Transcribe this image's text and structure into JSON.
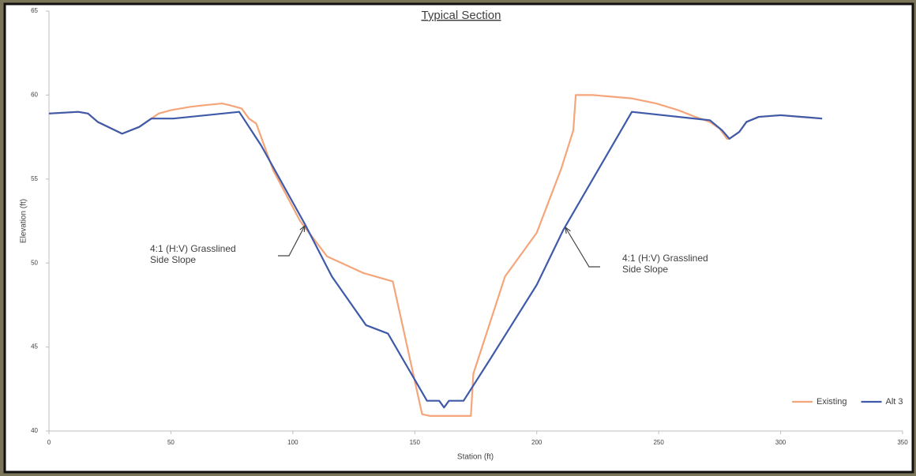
{
  "chart_data": {
    "type": "line",
    "title": "Typical Section",
    "x_label": "Station (ft)",
    "y_label": "Elevation (ft)",
    "xlim": [
      0,
      350
    ],
    "xticks": [
      0,
      50,
      100,
      150,
      200,
      250,
      300,
      350
    ],
    "ylim": [
      40,
      65
    ],
    "yticks": [
      40,
      45,
      50,
      55,
      60,
      65
    ],
    "grid": false,
    "legend": "bottom-right",
    "series": [
      {
        "name": "Existing",
        "color": "#f4a57a",
        "x": [
          0,
          12,
          16,
          20,
          30,
          37,
          42,
          45,
          50,
          58,
          64,
          71,
          74,
          79,
          82,
          85,
          92,
          103,
          114,
          129,
          141,
          153,
          156,
          173,
          174,
          187,
          200,
          210,
          215,
          216,
          223,
          239,
          249,
          258,
          265,
          271,
          275,
          278,
          279,
          283,
          286,
          291,
          300,
          317
        ],
        "values": [
          58.9,
          59.0,
          58.9,
          58.4,
          57.7,
          58.1,
          58.6,
          58.9,
          59.1,
          59.3,
          59.4,
          59.5,
          59.4,
          59.2,
          58.6,
          58.3,
          55.5,
          52.5,
          50.4,
          49.4,
          48.9,
          41.0,
          40.9,
          40.9,
          43.4,
          49.2,
          51.8,
          55.6,
          57.9,
          60.0,
          60.0,
          59.8,
          59.5,
          59.1,
          58.7,
          58.4,
          58.0,
          57.4,
          57.4,
          57.8,
          58.4,
          58.7,
          58.8,
          58.6
        ]
      },
      {
        "name": "Alt 3",
        "color": "#3f5aa8",
        "x": [
          0,
          12,
          16,
          20,
          30,
          37,
          42,
          51,
          78,
          87,
          105,
          116,
          130,
          139,
          155,
          160,
          162,
          164,
          170,
          181,
          200,
          211,
          239,
          271,
          276,
          279,
          283,
          286,
          291,
          300,
          317
        ],
        "values": [
          58.9,
          59.0,
          58.9,
          58.4,
          57.7,
          58.1,
          58.6,
          58.6,
          59.0,
          57.0,
          52.3,
          49.2,
          46.3,
          45.8,
          41.8,
          41.8,
          41.4,
          41.8,
          41.8,
          44.3,
          48.7,
          52.0,
          59.0,
          58.5,
          57.9,
          57.4,
          57.8,
          58.4,
          58.7,
          58.8,
          58.6
        ]
      }
    ],
    "annotations": [
      {
        "lines": [
          "4:1 (H:V) Grasslined",
          "Side Slope"
        ]
      },
      {
        "lines": [
          "4:1 (H:V) Grasslined",
          "Side Slope"
        ]
      }
    ]
  }
}
